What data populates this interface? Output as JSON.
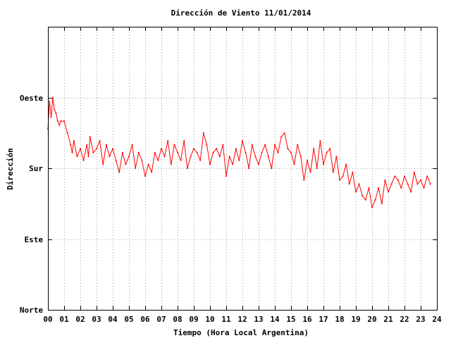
{
  "chart_data": {
    "type": "line",
    "title": "Dirección de Viento 11/01/2014",
    "xlabel": "Tiempo (Hora Local Argentina)",
    "ylabel": "Dirección",
    "xlim": [
      0,
      24
    ],
    "ylim": [
      0,
      360
    ],
    "x_ticks": [
      {
        "value": 0,
        "label": "00"
      },
      {
        "value": 1,
        "label": "01"
      },
      {
        "value": 2,
        "label": "02"
      },
      {
        "value": 3,
        "label": "03"
      },
      {
        "value": 4,
        "label": "04"
      },
      {
        "value": 5,
        "label": "05"
      },
      {
        "value": 6,
        "label": "06"
      },
      {
        "value": 7,
        "label": "07"
      },
      {
        "value": 8,
        "label": "08"
      },
      {
        "value": 9,
        "label": "09"
      },
      {
        "value": 10,
        "label": "10"
      },
      {
        "value": 11,
        "label": "11"
      },
      {
        "value": 12,
        "label": "12"
      },
      {
        "value": 13,
        "label": "13"
      },
      {
        "value": 14,
        "label": "14"
      },
      {
        "value": 15,
        "label": "15"
      },
      {
        "value": 16,
        "label": "16"
      },
      {
        "value": 17,
        "label": "17"
      },
      {
        "value": 18,
        "label": "18"
      },
      {
        "value": 19,
        "label": "19"
      },
      {
        "value": 20,
        "label": "20"
      },
      {
        "value": 21,
        "label": "21"
      },
      {
        "value": 22,
        "label": "22"
      },
      {
        "value": 23,
        "label": "23"
      },
      {
        "value": 24,
        "label": "24"
      }
    ],
    "y_ticks": [
      {
        "value": 0,
        "label": "Norte"
      },
      {
        "value": 90,
        "label": "Este"
      },
      {
        "value": 180,
        "label": "Sur"
      },
      {
        "value": 270,
        "label": "Oeste"
      }
    ],
    "grid": true,
    "series": [
      {
        "color": "#ff0000",
        "x": [
          0.0,
          0.1,
          0.2,
          0.3,
          0.4,
          0.5,
          0.6,
          0.7,
          0.8,
          1.0,
          1.2,
          1.4,
          1.5,
          1.6,
          1.8,
          2.0,
          2.2,
          2.4,
          2.5,
          2.6,
          2.8,
          3.0,
          3.2,
          3.4,
          3.6,
          3.8,
          4.0,
          4.2,
          4.4,
          4.6,
          4.8,
          5.0,
          5.2,
          5.4,
          5.6,
          5.8,
          6.0,
          6.2,
          6.4,
          6.6,
          6.8,
          7.0,
          7.2,
          7.4,
          7.6,
          7.8,
          8.0,
          8.2,
          8.4,
          8.6,
          8.8,
          9.0,
          9.2,
          9.4,
          9.6,
          9.8,
          10.0,
          10.2,
          10.4,
          10.6,
          10.8,
          11.0,
          11.2,
          11.4,
          11.6,
          11.8,
          12.0,
          12.2,
          12.4,
          12.6,
          12.8,
          13.0,
          13.2,
          13.4,
          13.6,
          13.8,
          14.0,
          14.2,
          14.4,
          14.6,
          14.8,
          15.0,
          15.2,
          15.4,
          15.6,
          15.8,
          16.0,
          16.2,
          16.4,
          16.6,
          16.8,
          17.0,
          17.2,
          17.4,
          17.6,
          17.8,
          18.0,
          18.2,
          18.4,
          18.6,
          18.8,
          19.0,
          19.2,
          19.4,
          19.6,
          19.8,
          20.0,
          20.2,
          20.4,
          20.6,
          20.8,
          21.0,
          21.2,
          21.4,
          21.6,
          21.8,
          22.0,
          22.2,
          22.4,
          22.6,
          22.8,
          23.0,
          23.2,
          23.4,
          23.6
        ],
        "y": [
          230,
          265,
          245,
          270,
          255,
          250,
          240,
          235,
          240,
          240,
          225,
          210,
          200,
          215,
          195,
          205,
          190,
          210,
          195,
          220,
          200,
          205,
          215,
          185,
          210,
          195,
          205,
          190,
          175,
          200,
          185,
          195,
          210,
          180,
          200,
          190,
          170,
          185,
          175,
          200,
          190,
          205,
          195,
          215,
          185,
          210,
          200,
          190,
          215,
          180,
          195,
          205,
          200,
          190,
          225,
          210,
          185,
          200,
          205,
          195,
          210,
          170,
          195,
          185,
          205,
          190,
          215,
          200,
          180,
          210,
          195,
          185,
          200,
          210,
          195,
          180,
          210,
          200,
          220,
          225,
          205,
          200,
          185,
          210,
          195,
          165,
          190,
          175,
          205,
          180,
          215,
          185,
          200,
          205,
          175,
          195,
          165,
          170,
          185,
          160,
          175,
          150,
          160,
          145,
          140,
          155,
          130,
          140,
          155,
          135,
          165,
          150,
          160,
          170,
          165,
          155,
          170,
          160,
          150,
          175,
          160,
          165,
          155,
          170,
          160
        ]
      }
    ]
  }
}
